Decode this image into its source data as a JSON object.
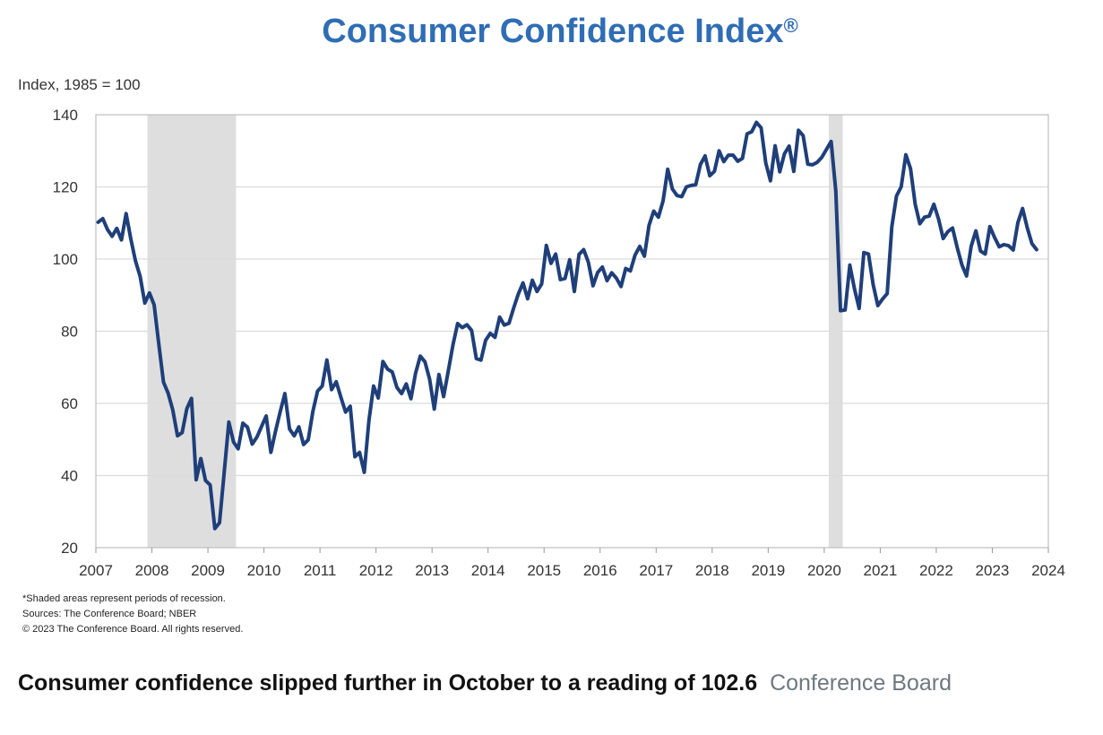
{
  "chart_data": {
    "type": "line",
    "title": "Consumer Confidence Index",
    "title_mark": "®",
    "ylabel": "Index, 1985 = 100",
    "xlabel": "",
    "ylim": [
      20,
      140
    ],
    "yticks": [
      20,
      40,
      60,
      80,
      100,
      120,
      140
    ],
    "xlim": [
      2007,
      2024
    ],
    "xticks": [
      "2007",
      "2008",
      "2009",
      "2010",
      "2011",
      "2012",
      "2013",
      "2014",
      "2015",
      "2016",
      "2017",
      "2018",
      "2019",
      "2020",
      "2021",
      "2022",
      "2023",
      "2024"
    ],
    "grid": true,
    "start": "2007-01",
    "frequency": "monthly",
    "series": [
      {
        "name": "Consumer Confidence Index",
        "color": "#1f3f7a",
        "values": [
          110.2,
          111.2,
          108.2,
          106.3,
          108.5,
          105.3,
          112.6,
          105.6,
          99.5,
          95.2,
          87.8,
          90.6,
          87.3,
          76.4,
          65.9,
          62.8,
          58.1,
          51.0,
          51.9,
          58.5,
          61.4,
          38.8,
          44.7,
          38.6,
          37.4,
          25.3,
          26.9,
          40.8,
          54.8,
          49.3,
          47.4,
          54.5,
          53.4,
          48.7,
          50.6,
          53.6,
          56.5,
          46.4,
          52.3,
          57.7,
          62.7,
          52.9,
          51.0,
          53.5,
          48.6,
          49.9,
          57.8,
          63.4,
          64.8,
          72.0,
          63.8,
          66.0,
          61.7,
          57.6,
          59.2,
          45.2,
          46.4,
          40.9,
          55.2,
          64.8,
          61.5,
          71.6,
          69.5,
          68.7,
          64.4,
          62.7,
          65.4,
          61.3,
          68.4,
          73.1,
          71.5,
          66.7,
          58.4,
          68.0,
          61.9,
          69.0,
          76.2,
          82.1,
          81.0,
          81.8,
          80.2,
          72.4,
          72.0,
          77.5,
          79.4,
          78.3,
          83.9,
          81.7,
          82.2,
          86.4,
          90.3,
          93.4,
          89.0,
          94.1,
          91.0,
          93.1,
          103.8,
          98.8,
          101.4,
          94.3,
          94.6,
          99.8,
          91.0,
          101.3,
          102.6,
          99.1,
          92.6,
          96.3,
          97.8,
          94.0,
          96.2,
          94.7,
          92.4,
          97.4,
          96.7,
          101.1,
          103.5,
          100.8,
          109.4,
          113.3,
          111.6,
          116.1,
          124.9,
          119.4,
          117.6,
          117.3,
          120.0,
          120.4,
          120.6,
          126.2,
          128.6,
          123.1,
          124.3,
          130.0,
          127.0,
          128.8,
          128.8,
          127.1,
          127.9,
          134.7,
          135.3,
          137.9,
          136.4,
          126.6,
          121.7,
          131.4,
          124.2,
          129.2,
          131.3,
          124.3,
          135.7,
          134.2,
          126.3,
          126.1,
          126.8,
          128.2,
          130.4,
          132.6,
          118.8,
          85.7,
          85.9,
          98.3,
          91.7,
          86.3,
          101.8,
          101.4,
          92.9,
          87.1,
          88.9,
          90.4,
          109.0,
          117.5,
          120.0,
          128.9,
          125.1,
          115.2,
          109.8,
          111.6,
          111.9,
          115.2,
          111.1,
          105.7,
          107.6,
          108.6,
          103.2,
          98.4,
          95.3,
          103.6,
          107.8,
          102.2,
          101.4,
          109.0,
          106.0,
          103.4,
          104.0,
          103.7,
          102.5,
          110.1,
          114.0,
          108.7,
          104.3,
          102.6
        ]
      }
    ],
    "recessions": [
      {
        "start": 2007.92,
        "end": 2009.5
      },
      {
        "start": 2020.08,
        "end": 2020.33
      }
    ],
    "recession_color": "#dedede"
  },
  "notes": {
    "shaded": "*Shaded areas represent periods of recession.",
    "sources": "Sources: The Conference Board; NBER",
    "copyright": "© 2023 The Conference Board. All rights reserved."
  },
  "caption": {
    "text": "Consumer confidence slipped further in October to a reading of 102.6",
    "source": "Conference Board"
  }
}
